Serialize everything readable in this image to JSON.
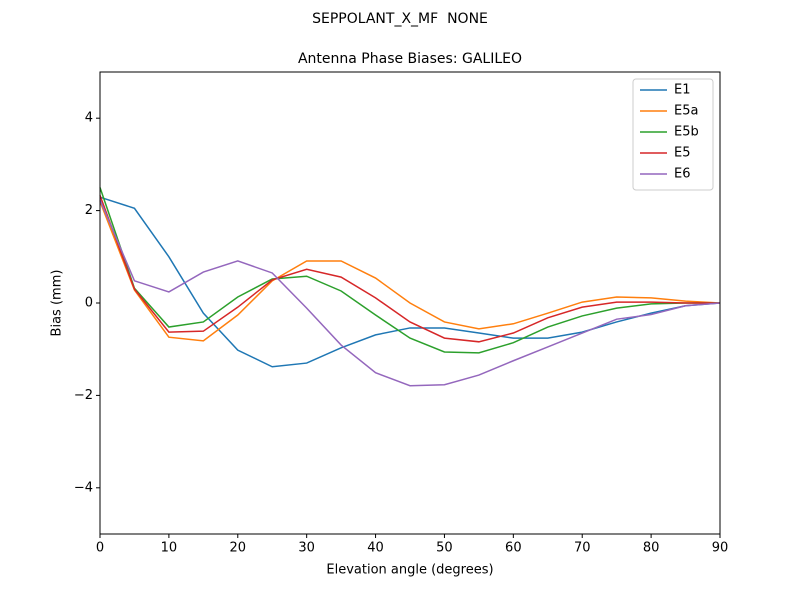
{
  "chart_data": {
    "type": "line",
    "suptitle": "SEPPOLANT_X_MF  NONE",
    "title": "Antenna Phase Biases: GALILEO",
    "xlabel": "Elevation angle (degrees)",
    "ylabel": "Bias (mm)",
    "x": [
      0,
      5,
      10,
      15,
      20,
      25,
      30,
      35,
      40,
      45,
      50,
      55,
      60,
      65,
      70,
      75,
      80,
      85,
      90
    ],
    "series": [
      {
        "name": "E1",
        "color": "#1f77b4",
        "values": [
          2.29,
          2.05,
          1.0,
          -0.22,
          -1.02,
          -1.38,
          -1.3,
          -0.97,
          -0.69,
          -0.54,
          -0.54,
          -0.65,
          -0.76,
          -0.76,
          -0.63,
          -0.41,
          -0.22,
          -0.06,
          0
        ]
      },
      {
        "name": "E5a",
        "color": "#ff7f0e",
        "values": [
          2.2,
          0.28,
          -0.74,
          -0.82,
          -0.26,
          0.48,
          0.91,
          0.91,
          0.54,
          0,
          -0.41,
          -0.56,
          -0.45,
          -0.22,
          0.02,
          0.13,
          0.11,
          0.04,
          0
        ]
      },
      {
        "name": "E5b",
        "color": "#2ca02c",
        "values": [
          2.5,
          0.32,
          -0.52,
          -0.41,
          0.13,
          0.52,
          0.58,
          0.26,
          -0.26,
          -0.76,
          -1.06,
          -1.08,
          -0.86,
          -0.52,
          -0.28,
          -0.11,
          -0.02,
          0,
          0
        ]
      },
      {
        "name": "E5",
        "color": "#d62728",
        "values": [
          2.33,
          0.3,
          -0.63,
          -0.61,
          -0.09,
          0.5,
          0.73,
          0.56,
          0.11,
          -0.41,
          -0.76,
          -0.84,
          -0.65,
          -0.32,
          -0.09,
          0.02,
          0.02,
          0,
          0
        ]
      },
      {
        "name": "E6",
        "color": "#9467bd",
        "values": [
          2.23,
          0.48,
          0.24,
          0.67,
          0.91,
          0.65,
          -0.11,
          -0.91,
          -1.51,
          -1.79,
          -1.77,
          -1.56,
          -1.25,
          -0.95,
          -0.65,
          -0.35,
          -0.25,
          -0.06,
          0
        ]
      }
    ],
    "xlim": [
      0,
      90
    ],
    "xticks": [
      0,
      10,
      20,
      30,
      40,
      50,
      60,
      70,
      80,
      90
    ],
    "ylim": [
      -5,
      5
    ],
    "yticks": [
      {
        "value": -4,
        "label": "−4"
      },
      {
        "value": -2,
        "label": "−2"
      },
      0,
      2,
      4
    ],
    "legend": "upper right"
  }
}
